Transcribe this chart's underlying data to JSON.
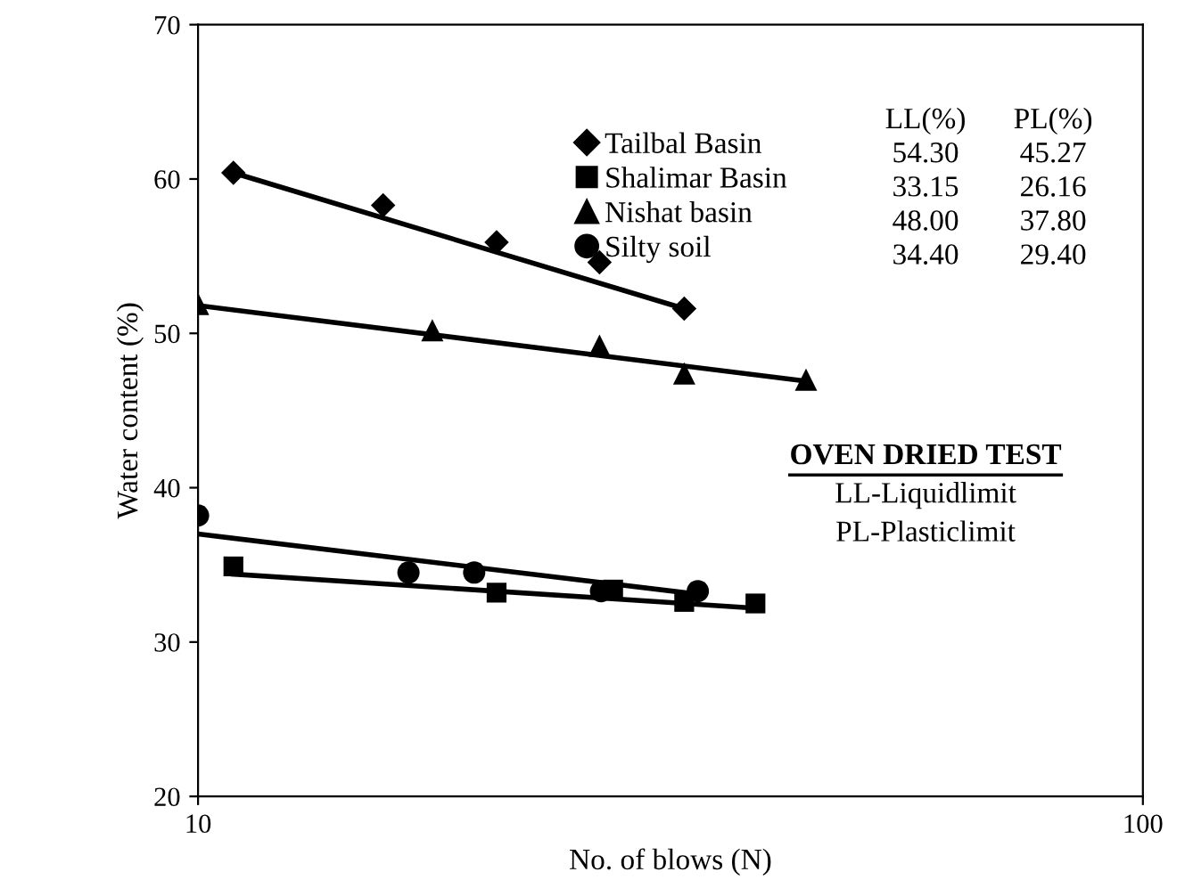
{
  "chart_data": {
    "type": "scatter",
    "xlabel": "No. of blows (N)",
    "ylabel": "Water content (%)",
    "log": "x",
    "xlim": [
      10,
      100
    ],
    "xticks": [
      10,
      100
    ],
    "ylim": [
      20,
      70
    ],
    "yticks": [
      20,
      30,
      40,
      50,
      60,
      70
    ],
    "grid": false,
    "legend": "top right",
    "series": [
      {
        "name": "Tailbal Basin",
        "color": "#000000",
        "marker": "diamond",
        "x": [
          10.9,
          15.7,
          20.7,
          26.6,
          32.7
        ],
        "values": [
          60.4,
          58.3,
          55.9,
          54.6,
          51.6
        ]
      },
      {
        "name": "Shalimar Basin",
        "color": "#000000",
        "marker": "square",
        "x": [
          10.9,
          20.7,
          27.5,
          32.7,
          38.9
        ],
        "values": [
          34.9,
          33.2,
          33.4,
          32.6,
          32.5
        ]
      },
      {
        "name": "Nishat basin",
        "color": "#000000",
        "marker": "triangle",
        "x": [
          10.0,
          17.7,
          26.6,
          32.7,
          44.0
        ],
        "values": [
          51.9,
          50.2,
          49.2,
          47.4,
          47.0
        ]
      },
      {
        "name": "Silty soil",
        "color": "#000000",
        "marker": "circle",
        "x": [
          10.0,
          16.7,
          19.6,
          26.7,
          33.8
        ],
        "values": [
          38.2,
          34.5,
          34.5,
          33.3,
          33.3
        ]
      },
      {
        "type": "line",
        "color": "#000000",
        "marker": "none",
        "x": [
          10.9,
          32.7
        ],
        "values": [
          60.4,
          51.6
        ]
      },
      {
        "type": "line",
        "color": "#000000",
        "marker": "none",
        "x": [
          10.9,
          38.9
        ],
        "values": [
          34.4,
          32.2
        ]
      },
      {
        "type": "line",
        "color": "#000000",
        "marker": "none",
        "x": [
          10.0,
          44.0
        ],
        "values": [
          51.8,
          46.9
        ]
      },
      {
        "type": "line",
        "color": "#000000",
        "marker": "none",
        "x": [
          10.0,
          33.8
        ],
        "values": [
          37.0,
          33.1
        ]
      }
    ],
    "annotations": [
      "LL(%)",
      "PL(%)",
      "54.30",
      "45.27",
      "33.15",
      "26.16",
      "48.00",
      "37.80",
      "34.40",
      "29.40",
      "OVEN DRIED TEST",
      "LL-Liquidlimit",
      "PL-Plasticlimit"
    ]
  }
}
